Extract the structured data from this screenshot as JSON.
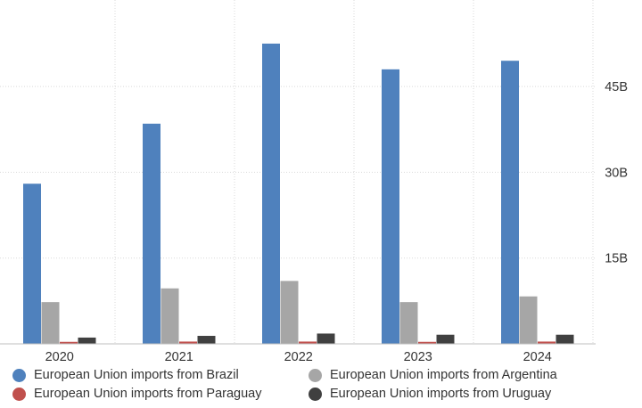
{
  "chart_data": {
    "type": "bar",
    "categories": [
      "2020",
      "2021",
      "2022",
      "2023",
      "2024"
    ],
    "series": [
      {
        "name": "European Union imports from Brazil",
        "color": "#4f81bd",
        "values": [
          28,
          38.5,
          52.5,
          48,
          49.5
        ]
      },
      {
        "name": "European Union imports from Argentina",
        "color": "#a6a6a6",
        "values": [
          7.3,
          9.7,
          11,
          7.3,
          8.3
        ]
      },
      {
        "name": "European Union imports from Paraguay",
        "color": "#c0504d",
        "values": [
          0.35,
          0.4,
          0.4,
          0.35,
          0.4
        ]
      },
      {
        "name": "European Union imports from Uruguay",
        "color": "#404040",
        "values": [
          1.1,
          1.4,
          1.8,
          1.6,
          1.6
        ]
      }
    ],
    "y_ticks": [
      15,
      30,
      45
    ],
    "y_tick_labels": [
      "15B",
      "30B",
      "45B"
    ],
    "ylim": [
      0,
      60
    ],
    "y_axis_side": "right",
    "title": "",
    "xlabel": "",
    "ylabel": "",
    "grid": true,
    "legend_position": "bottom"
  }
}
